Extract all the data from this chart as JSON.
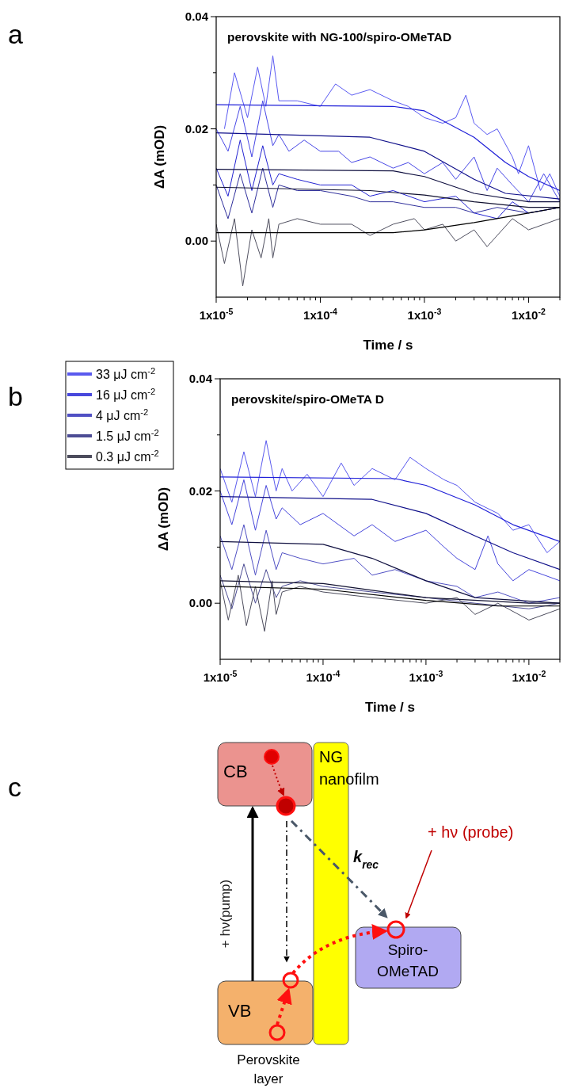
{
  "chart_data": [
    {
      "type": "line",
      "title": "perovskite with NG-100/spiro-OMeTAD",
      "xlabel": "Time / s",
      "ylabel": "ΔA (mOD)",
      "annotations": [
        "a"
      ],
      "log": "x",
      "xlim": [
        1e-05,
        0.02
      ],
      "ylim": [
        -0.01,
        0.04
      ],
      "xticks": [
        {
          "value": 1e-05,
          "label": "1x10$^{-5}$"
        },
        {
          "value": 2e-05,
          "label": null
        },
        {
          "value": 3e-05,
          "label": null
        },
        {
          "value": 4e-05,
          "label": null
        },
        {
          "value": 5e-05,
          "label": null
        },
        {
          "value": 6e-05,
          "label": null
        },
        {
          "value": 7e-05,
          "label": null
        },
        {
          "value": 8e-05,
          "label": null
        },
        {
          "value": 9e-05,
          "label": null
        },
        {
          "value": 0.0001,
          "label": "1x10$^{-4}$"
        },
        {
          "value": 0.0002,
          "label": null
        },
        {
          "value": 0.0003,
          "label": null
        },
        {
          "value": 0.0004,
          "label": null
        },
        {
          "value": 0.0005,
          "label": null
        },
        {
          "value": 0.0006,
          "label": null
        },
        {
          "value": 0.0007,
          "label": null
        },
        {
          "value": 0.0008,
          "label": null
        },
        {
          "value": 0.0009,
          "label": null
        },
        {
          "value": 0.001,
          "label": "1x10$^{-3}$"
        },
        {
          "value": 0.002,
          "label": null
        },
        {
          "value": 0.003,
          "label": null
        },
        {
          "value": 0.004,
          "label": null
        },
        {
          "value": 0.005,
          "label": null
        },
        {
          "value": 0.006,
          "label": null
        },
        {
          "value": 0.007,
          "label": null
        },
        {
          "value": 0.008,
          "label": null
        },
        {
          "value": 0.009,
          "label": null
        },
        {
          "value": 0.01,
          "label": "1x10$^{-2}$"
        },
        {
          "value": 0.02,
          "label": null
        }
      ],
      "yticks": [
        {
          "value": 0,
          "label": "0.00"
        },
        {
          "value": 0.01,
          "label": null
        },
        {
          "value": 0.02,
          "label": "0.02"
        },
        {
          "value": 0.03,
          "label": null
        },
        {
          "value": 0.04,
          "label": "0.04"
        }
      ],
      "series": [
        {
          "color": "#5a5af2",
          "x": [
            1.2e-05,
            1.5e-05,
            2e-05,
            2.5e-05,
            3e-05,
            3.5e-05,
            4e-05,
            6e-05,
            0.0001,
            0.00014,
            0.0002,
            0.0003,
            0.0005,
            0.0007,
            0.001,
            0.0015,
            0.002,
            0.0025,
            0.003,
            0.004,
            0.005,
            0.007,
            0.008,
            0.01,
            0.013,
            0.016,
            0.02
          ],
          "values": [
            0.02,
            0.03,
            0.022,
            0.031,
            0.024,
            0.033,
            0.025,
            0.025,
            0.024,
            0.028,
            0.026,
            0.027,
            0.025,
            0.024,
            0.022,
            0.021,
            0.022,
            0.026,
            0.021,
            0.019,
            0.02,
            0.015,
            0.012,
            0.017,
            0.009,
            0.012,
            0.008
          ]
        },
        {
          "color": "#4848e6",
          "x": [
            1e-05,
            1.3e-05,
            1.7e-05,
            2.2e-05,
            2.8e-05,
            3.5e-05,
            4e-05,
            5e-05,
            7e-05,
            0.0001,
            0.00015,
            0.0002,
            0.0003,
            0.0005,
            0.0007,
            0.001,
            0.0015,
            0.002,
            0.003,
            0.004,
            0.005,
            0.007,
            0.01,
            0.014,
            0.02
          ],
          "values": [
            0.02,
            0.016,
            0.024,
            0.015,
            0.025,
            0.017,
            0.019,
            0.016,
            0.018,
            0.016,
            0.016,
            0.014,
            0.015,
            0.013,
            0.014,
            0.012,
            0.014,
            0.011,
            0.015,
            0.009,
            0.013,
            0.01,
            0.007,
            0.012,
            0.007
          ]
        },
        {
          "color": "#2424d2",
          "x": [
            1e-05,
            1.3e-05,
            1.7e-05,
            2.2e-05,
            2.8e-05,
            3.5e-05,
            4e-05,
            6e-05,
            0.0001,
            0.0002,
            0.0003,
            0.0005,
            0.001,
            0.002,
            0.003,
            0.005,
            0.007,
            0.01,
            0.02
          ],
          "values": [
            0.013,
            0.008,
            0.018,
            0.009,
            0.017,
            0.01,
            0.012,
            0.011,
            0.01,
            0.01,
            0.008,
            0.009,
            0.007,
            0.008,
            0.005,
            0.004,
            0.007,
            0.005,
            0.006
          ]
        },
        {
          "color": "#30309c",
          "x": [
            1e-05,
            1.3e-05,
            1.7e-05,
            2.2e-05,
            2.8e-05,
            3.5e-05,
            4e-05,
            6e-05,
            0.0001,
            0.0002,
            0.0003,
            0.0005,
            0.001,
            0.002,
            0.003,
            0.005,
            0.01,
            0.02
          ],
          "values": [
            0.01,
            0.004,
            0.012,
            0.005,
            0.013,
            0.006,
            0.01,
            0.009,
            0.009,
            0.008,
            0.007,
            0.007,
            0.006,
            0.006,
            0.005,
            0.006,
            0.005,
            0.006
          ]
        },
        {
          "color": "#505060",
          "x": [
            1e-05,
            1.2e-05,
            1.5e-05,
            1.8e-05,
            2.2e-05,
            2.7e-05,
            3.2e-05,
            3.5e-05,
            4e-05,
            6e-05,
            0.0001,
            0.0002,
            0.0003,
            0.0005,
            0.0008,
            0.001,
            0.0015,
            0.002,
            0.003,
            0.004,
            0.005,
            0.007,
            0.01,
            0.02
          ],
          "values": [
            0.003,
            -0.004,
            0.004,
            -0.008,
            0.002,
            -0.003,
            0.004,
            -0.003,
            0.003,
            0.004,
            0.003,
            0.003,
            0.001,
            0.003,
            0.004,
            0.002,
            0.003,
            0,
            0.002,
            -0.001,
            0.001,
            0.004,
            0.002,
            0.004
          ]
        },
        {
          "color": "#2020d8",
          "x": [
            1e-05,
            0.0005,
            0.001,
            0.003,
            0.006,
            0.01,
            0.02
          ],
          "values": [
            0.0243,
            0.024,
            0.0232,
            0.0185,
            0.014,
            0.0115,
            0.009
          ]
        },
        {
          "color": "#10108a",
          "x": [
            1e-05,
            0.0003,
            0.001,
            0.003,
            0.006,
            0.02
          ],
          "values": [
            0.0193,
            0.0185,
            0.016,
            0.011,
            0.0085,
            0.0075
          ]
        },
        {
          "color": "#101040",
          "x": [
            1e-05,
            0.0005,
            0.001,
            0.003,
            0.01,
            0.02
          ],
          "values": [
            0.0128,
            0.0125,
            0.0115,
            0.0085,
            0.007,
            0.007
          ]
        },
        {
          "color": "#101030",
          "x": [
            1e-05,
            0.0003,
            0.001,
            0.003,
            0.01,
            0.02
          ],
          "values": [
            0.0096,
            0.009,
            0.0082,
            0.007,
            0.006,
            0.006
          ]
        },
        {
          "color": "#000000",
          "x": [
            1e-05,
            0.0005,
            0.001,
            0.003,
            0.01,
            0.02
          ],
          "values": [
            0.0015,
            0.0015,
            0.002,
            0.0033,
            0.005,
            0.006
          ]
        }
      ]
    },
    {
      "type": "line",
      "title": "perovskite/spiro-OMeTA D",
      "xlabel": "Time / s",
      "ylabel": "ΔA (mOD)",
      "annotations": [
        "b"
      ],
      "log": "x",
      "legend": "top left",
      "xlim": [
        1e-05,
        0.02
      ],
      "ylim": [
        -0.01,
        0.04
      ],
      "xticks": [
        {
          "value": 1e-05,
          "label": "1x10$^{-5}$"
        },
        {
          "value": 2e-05,
          "label": null
        },
        {
          "value": 3e-05,
          "label": null
        },
        {
          "value": 4e-05,
          "label": null
        },
        {
          "value": 5e-05,
          "label": null
        },
        {
          "value": 6e-05,
          "label": null
        },
        {
          "value": 7e-05,
          "label": null
        },
        {
          "value": 8e-05,
          "label": null
        },
        {
          "value": 9e-05,
          "label": null
        },
        {
          "value": 0.0001,
          "label": "1x10$^{-4}$"
        },
        {
          "value": 0.0002,
          "label": null
        },
        {
          "value": 0.0003,
          "label": null
        },
        {
          "value": 0.0004,
          "label": null
        },
        {
          "value": 0.0005,
          "label": null
        },
        {
          "value": 0.0006,
          "label": null
        },
        {
          "value": 0.0007,
          "label": null
        },
        {
          "value": 0.0008,
          "label": null
        },
        {
          "value": 0.0009,
          "label": null
        },
        {
          "value": 0.001,
          "label": "1x10$^{-3}$"
        },
        {
          "value": 0.002,
          "label": null
        },
        {
          "value": 0.003,
          "label": null
        },
        {
          "value": 0.004,
          "label": null
        },
        {
          "value": 0.005,
          "label": null
        },
        {
          "value": 0.006,
          "label": null
        },
        {
          "value": 0.007,
          "label": null
        },
        {
          "value": 0.008,
          "label": null
        },
        {
          "value": 0.009,
          "label": null
        },
        {
          "value": 0.01,
          "label": "1x10$^{-2}$"
        },
        {
          "value": 0.02,
          "label": null
        }
      ],
      "yticks": [
        {
          "value": 0,
          "label": "0.00"
        },
        {
          "value": 0.01,
          "label": null
        },
        {
          "value": 0.02,
          "label": "0.02"
        },
        {
          "value": 0.03,
          "label": null
        },
        {
          "value": 0.04,
          "label": "0.04"
        }
      ],
      "series": [
        {
          "name": "33 μJ cm$^{-2}$",
          "color": "#5a5aee",
          "x": [
            1e-05,
            1.3e-05,
            1.7e-05,
            2.2e-05,
            2.8e-05,
            3.5e-05,
            4e-05,
            5e-05,
            7e-05,
            0.0001,
            0.00015,
            0.0002,
            0.0003,
            0.0005,
            0.0007,
            0.001,
            0.0015,
            0.002,
            0.003,
            0.005,
            0.007,
            0.01,
            0.015,
            0.02
          ],
          "values": [
            0.024,
            0.018,
            0.027,
            0.019,
            0.029,
            0.02,
            0.024,
            0.02,
            0.023,
            0.019,
            0.025,
            0.021,
            0.024,
            0.022,
            0.026,
            0.024,
            0.022,
            0.021,
            0.018,
            0.016,
            0.013,
            0.014,
            0.009,
            0.011
          ]
        },
        {
          "name": "16  μJ cm$^{-2}$",
          "color": "#4848dc",
          "x": [
            1e-05,
            1.3e-05,
            1.7e-05,
            2.2e-05,
            2.8e-05,
            3.5e-05,
            4e-05,
            6e-05,
            0.0001,
            0.0002,
            0.0003,
            0.0005,
            0.001,
            0.0015,
            0.002,
            0.003,
            0.004,
            0.005,
            0.007,
            0.01,
            0.02
          ],
          "values": [
            0.02,
            0.014,
            0.022,
            0.013,
            0.021,
            0.015,
            0.017,
            0.014,
            0.016,
            0.012,
            0.014,
            0.011,
            0.013,
            0.01,
            0.008,
            0.006,
            0.012,
            0.007,
            0.004,
            0.006,
            0.004
          ]
        },
        {
          "name": "4  μJ cm$^{-2}$",
          "color": "#5050c4",
          "x": [
            1e-05,
            1.3e-05,
            1.7e-05,
            2.2e-05,
            2.8e-05,
            3.5e-05,
            4e-05,
            6e-05,
            0.0001,
            0.0002,
            0.0003,
            0.0005,
            0.001,
            0.002,
            0.003,
            0.005,
            0.01,
            0.02
          ],
          "values": [
            0.012,
            0.006,
            0.014,
            0.005,
            0.013,
            0.006,
            0.009,
            0.008,
            0.007,
            0.008,
            0.005,
            0.006,
            0.004,
            0.003,
            0.001,
            0.002,
            0,
            0.001
          ]
        },
        {
          "name": "1.5 μJ cm$^{-2}$",
          "color": "#4c4c94",
          "x": [
            1e-05,
            1.3e-05,
            1.7e-05,
            2.2e-05,
            2.8e-05,
            3.5e-05,
            4e-05,
            6e-05,
            0.0001,
            0.0003,
            0.001,
            0.003,
            0.01,
            0.02
          ],
          "values": [
            0.005,
            -0.001,
            0.007,
            0,
            0.006,
            0.001,
            0.003,
            0.004,
            0.003,
            0.002,
            0.001,
            0,
            -0.001,
            0
          ]
        },
        {
          "name": "0.3 μJ cm$^{-2}$",
          "color": "#4c4c5c",
          "x": [
            1e-05,
            1.2e-05,
            1.5e-05,
            1.8e-05,
            2.2e-05,
            2.7e-05,
            3.2e-05,
            3.5e-05,
            4e-05,
            6e-05,
            0.0001,
            0.0003,
            0.001,
            0.002,
            0.003,
            0.005,
            0.01,
            0.02
          ],
          "values": [
            0.004,
            -0.003,
            0.005,
            -0.004,
            0.003,
            -0.005,
            0.004,
            -0.002,
            0.002,
            0.003,
            0.002,
            0.001,
            0,
            0.001,
            -0.002,
            0,
            -0.003,
            -0.001
          ]
        },
        {
          "color": "#2020d8",
          "x": [
            1e-05,
            0.0005,
            0.001,
            0.003,
            0.007,
            0.02
          ],
          "values": [
            0.0225,
            0.0222,
            0.021,
            0.0175,
            0.014,
            0.011
          ]
        },
        {
          "color": "#10108a",
          "x": [
            1e-05,
            0.0003,
            0.001,
            0.003,
            0.007,
            0.02
          ],
          "values": [
            0.019,
            0.0185,
            0.016,
            0.012,
            0.009,
            0.006
          ]
        },
        {
          "color": "#101040",
          "x": [
            1e-05,
            0.0001,
            0.0003,
            0.001,
            0.003,
            0.02
          ],
          "values": [
            0.011,
            0.0105,
            0.008,
            0.004,
            0.001,
            0
          ]
        },
        {
          "color": "#101030",
          "x": [
            1e-05,
            0.0001,
            0.001,
            0.01,
            0.02
          ],
          "values": [
            0.004,
            0.0035,
            0.001,
            0,
            0
          ]
        },
        {
          "color": "#000000",
          "x": [
            1e-05,
            0.0001,
            0.001,
            0.005,
            0.02
          ],
          "values": [
            0.003,
            0.0025,
            0.0005,
            -0.0005,
            -0.0005
          ]
        }
      ]
    },
    {
      "type": "other",
      "annotations": [
        "c",
        "CB",
        "NG",
        "nanofilm",
        "k$_{rec}$",
        "+ hν (probe)",
        "+ hν(pump)",
        "Spiro-",
        "OMeTAD",
        "VB",
        "Perovskite",
        "layer"
      ]
    }
  ]
}
